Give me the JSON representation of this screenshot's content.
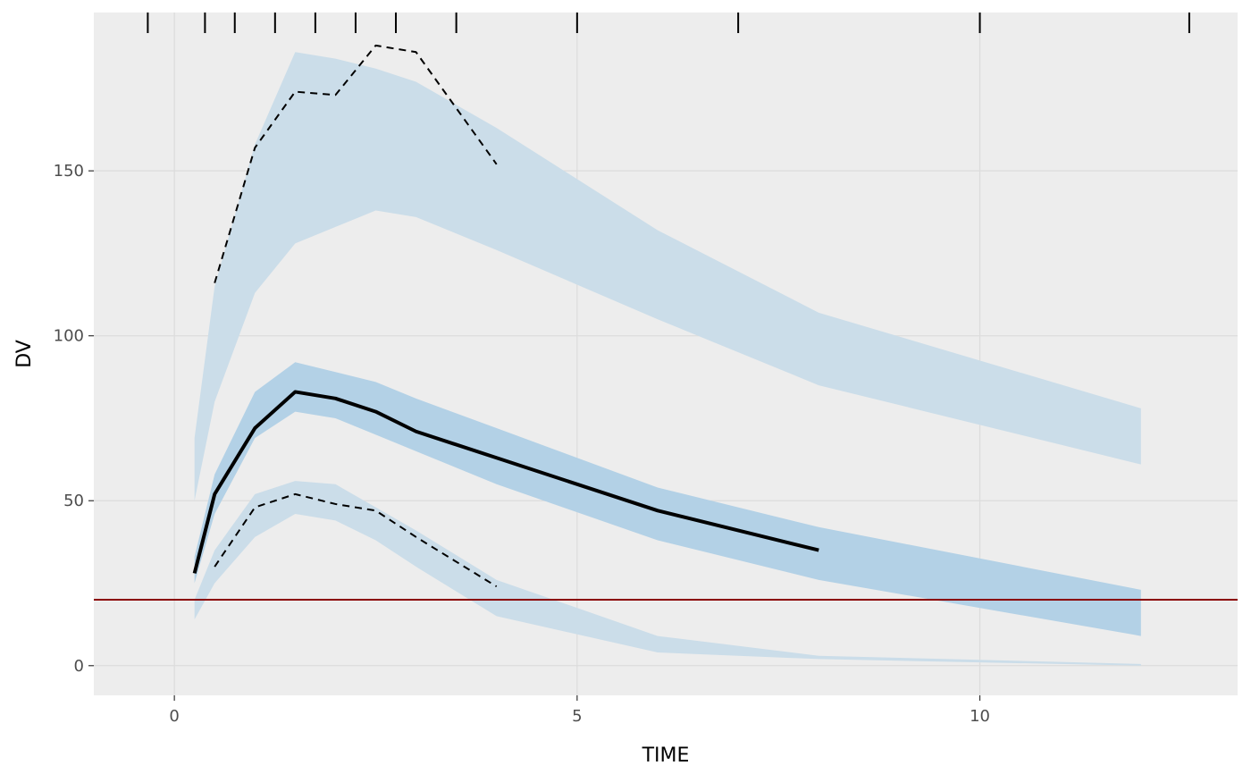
{
  "chart_data": {
    "type": "line",
    "xlabel": "TIME",
    "ylabel": "DV",
    "xlim": [
      -1,
      13.2
    ],
    "ylim": [
      -9,
      198
    ],
    "x_ticks": [
      0,
      5,
      10
    ],
    "y_ticks": [
      0,
      50,
      100,
      150
    ],
    "x_tick_labels": [
      "0",
      "5",
      "10"
    ],
    "y_tick_labels": [
      "0",
      "50",
      "100",
      "150"
    ],
    "grid": true,
    "bin_edges": [
      -0.33,
      0.38,
      0.75,
      1.25,
      1.75,
      2.25,
      2.75,
      3.5,
      5.0,
      7.0,
      10.0,
      12.6
    ],
    "reference_line": {
      "y": 20,
      "color": "#8b0000"
    },
    "colors": {
      "panel": "#ededed",
      "grid": "#dcdcdc",
      "outer_band": "#cbdde9",
      "median_band": "#b3d1e6",
      "observed": "#000000"
    },
    "bands": [
      {
        "name": "upper",
        "x": [
          0.25,
          0.5,
          1,
          1.5,
          2,
          2.5,
          3,
          4,
          6,
          8,
          12
        ],
        "lower": [
          50,
          80,
          113,
          128,
          133,
          138,
          136,
          126,
          105,
          85,
          61
        ],
        "upper": [
          69,
          115,
          158,
          186,
          184,
          181,
          177,
          163,
          132,
          107,
          78
        ]
      },
      {
        "name": "median",
        "x": [
          0.25,
          0.5,
          1,
          1.5,
          2,
          2.5,
          3,
          4,
          6,
          8,
          12
        ],
        "lower": [
          25,
          46,
          69,
          77,
          75,
          70,
          65,
          55,
          38,
          26,
          9
        ],
        "upper": [
          33,
          58,
          83,
          92,
          89,
          86,
          81,
          72,
          54,
          42,
          23
        ]
      },
      {
        "name": "lower",
        "x": [
          0.25,
          0.5,
          1,
          1.5,
          2,
          2.5,
          3,
          4,
          6,
          8,
          12
        ],
        "lower": [
          14,
          25,
          39,
          46,
          44,
          38,
          30,
          15,
          4,
          2,
          0
        ],
        "upper": [
          20,
          35,
          52,
          56,
          55,
          48,
          41,
          26,
          9,
          3,
          0.5
        ]
      }
    ],
    "series": [
      {
        "name": "observed 95th percentile",
        "style": "dashed",
        "x": [
          0.5,
          1,
          1.5,
          2,
          2.5,
          3,
          4
        ],
        "y": [
          116,
          157,
          174,
          173,
          188,
          186,
          152
        ]
      },
      {
        "name": "observed median",
        "style": "solid",
        "x": [
          0.25,
          0.5,
          1,
          1.5,
          2,
          2.5,
          3,
          4,
          6,
          8
        ],
        "y": [
          28,
          52,
          72,
          83,
          81,
          77,
          71,
          63,
          47,
          35
        ]
      },
      {
        "name": "observed 5th percentile",
        "style": "dashed",
        "x": [
          0.5,
          1,
          1.5,
          2,
          2.5,
          3,
          4
        ],
        "y": [
          30,
          48,
          52,
          49,
          47,
          39,
          24
        ]
      }
    ]
  }
}
